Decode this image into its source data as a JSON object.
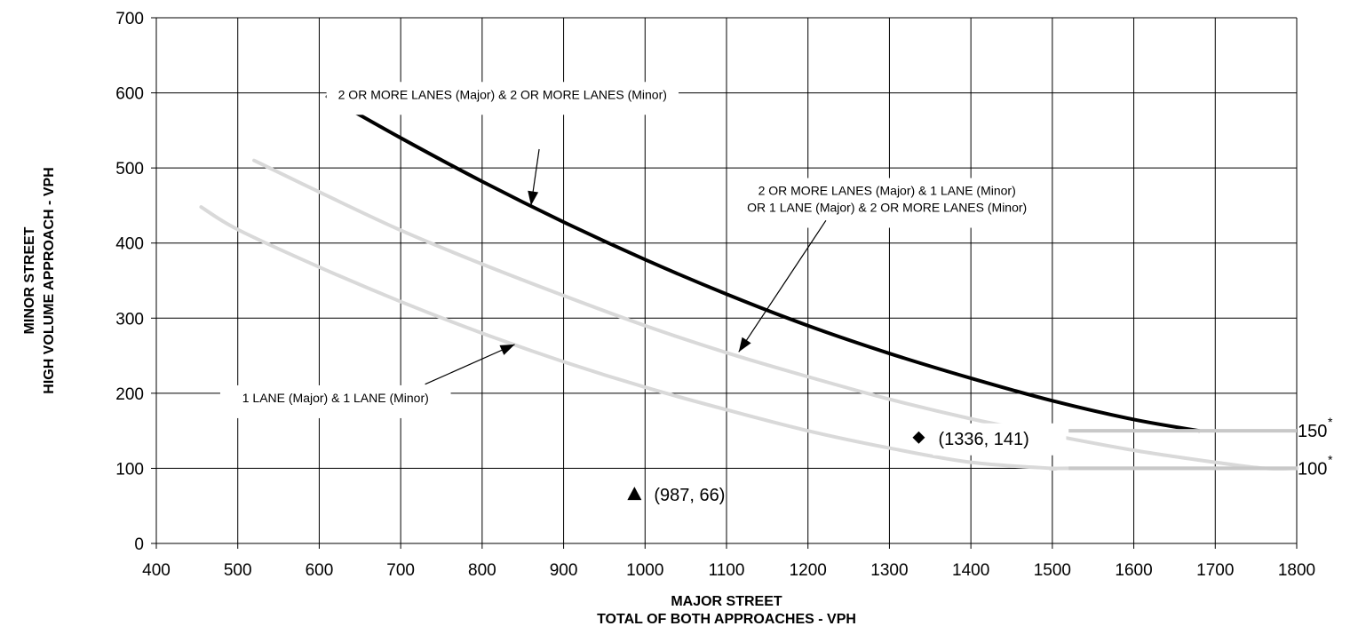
{
  "chart_data": {
    "type": "line",
    "xlabel": [
      "MAJOR STREET",
      "TOTAL OF BOTH APPROACHES - VPH"
    ],
    "ylabel": [
      "MINOR STREET",
      "HIGH VOLUME APPROACH - VPH"
    ],
    "xlim": [
      400,
      1800
    ],
    "ylim": [
      0,
      700
    ],
    "x_ticks": [
      400,
      500,
      600,
      700,
      800,
      900,
      1000,
      1100,
      1200,
      1300,
      1400,
      1500,
      1600,
      1700,
      1800
    ],
    "y_ticks": [
      0,
      100,
      200,
      300,
      400,
      500,
      600,
      700
    ],
    "grid": true,
    "colors": {
      "major_curve": "#000000",
      "minor_curve": "#d9d9d9",
      "grid": "#000000"
    },
    "series": [
      {
        "name": "2 OR MORE LANES (Major) & 2 OR MORE LANES (Minor)",
        "color": "#000000",
        "x": [
          610,
          700,
          800,
          900,
          1000,
          1100,
          1200,
          1300,
          1400,
          1500,
          1600,
          1680
        ],
        "y": [
          595,
          540,
          482,
          428,
          378,
          332,
          290,
          253,
          220,
          190,
          165,
          150
        ]
      },
      {
        "name": "2 OR MORE LANES (Major) & 1 LANE (Minor) OR 1 LANE (Major) & 2 OR MORE LANES (Minor)",
        "color": "#d9d9d9",
        "x": [
          520,
          600,
          700,
          800,
          900,
          1000,
          1100,
          1200,
          1300,
          1400,
          1500,
          1600,
          1700,
          1760,
          1800
        ],
        "y": [
          510,
          468,
          417,
          372,
          330,
          290,
          254,
          222,
          192,
          166,
          144,
          124,
          108,
          100,
          100
        ]
      },
      {
        "name": "1 LANE (Major) & 1 LANE (Minor)",
        "color": "#d9d9d9",
        "x": [
          455,
          500,
          600,
          700,
          800,
          900,
          1000,
          1100,
          1200,
          1300,
          1400,
          1500,
          1520,
          1800
        ],
        "y": [
          448,
          418,
          368,
          322,
          280,
          242,
          208,
          178,
          150,
          127,
          108,
          100,
          100,
          100
        ]
      }
    ],
    "reference_lines": [
      {
        "y": 150,
        "x_start": 1520,
        "x_end": 1800,
        "label": "150",
        "marker": "*"
      },
      {
        "y": 100,
        "x_start": 1520,
        "x_end": 1800,
        "label": "100",
        "marker": "*"
      }
    ],
    "points": [
      {
        "x": 1336,
        "y": 141,
        "marker": "diamond",
        "label": "(1336, 141)"
      },
      {
        "x": 987,
        "y": 66,
        "marker": "triangle",
        "label": "(987, 66)"
      }
    ],
    "annotations": [
      {
        "text": [
          "2 OR MORE LANES (Major) & 2 OR MORE LANES (Minor)"
        ],
        "text_x": 825,
        "text_y": 598,
        "arrow_from": [
          870,
          525
        ],
        "arrow_to": [
          860,
          450
        ]
      },
      {
        "text": [
          "2 OR MORE LANES (Major) & 1 LANE (Minor)",
          "OR 1 LANE (Major) & 2 OR MORE LANES (Minor)"
        ],
        "text_x": 1297,
        "text_y": 470,
        "arrow_from": [
          1222,
          430
        ],
        "arrow_to": [
          1115,
          255
        ]
      },
      {
        "text": [
          "1 LANE (Major) & 1 LANE (Minor)"
        ],
        "text_x": 620,
        "text_y": 194,
        "arrow_from": [
          730,
          212
        ],
        "arrow_to": [
          840,
          265
        ]
      }
    ]
  }
}
